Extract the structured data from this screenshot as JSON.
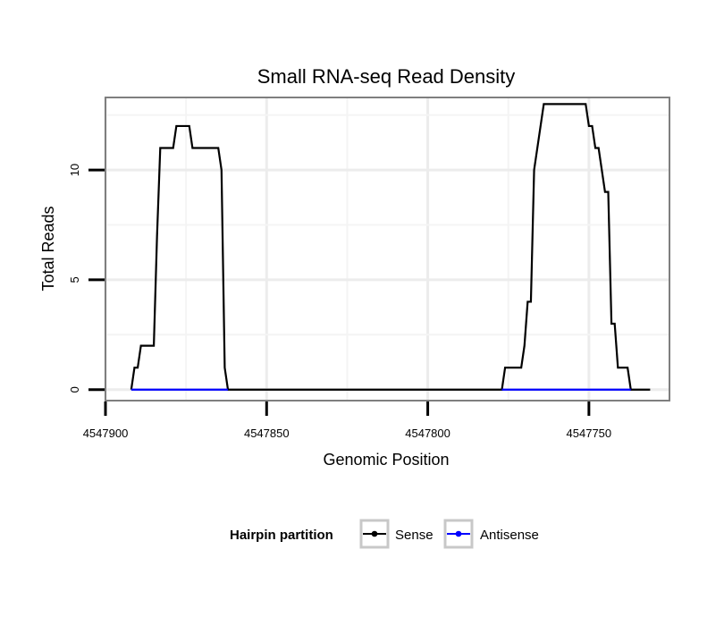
{
  "chart_data": {
    "type": "line",
    "title": "Small RNA-seq Read Density",
    "xlabel": "Genomic Position",
    "ylabel": "Total Reads",
    "xlim": [
      4547900,
      4547725
    ],
    "x_reversed": true,
    "ylim": [
      -0.5,
      13.3
    ],
    "xticks": [
      4547900,
      4547850,
      4547800,
      4547750
    ],
    "xtick_labels": [
      "4547900",
      "4547850",
      "4547800",
      "4547750"
    ],
    "yticks": [
      0,
      5,
      10
    ],
    "ytick_labels": [
      "0",
      "5",
      "10"
    ],
    "grid": true,
    "legend": {
      "title": "Hairpin partition",
      "position": "bottom",
      "entries": [
        {
          "name": "Sense",
          "color": "#000000"
        },
        {
          "name": "Antisense",
          "color": "#0000ff"
        }
      ]
    },
    "series": [
      {
        "name": "Sense",
        "color": "#000000",
        "points": [
          [
            4547892,
            0
          ],
          [
            4547891,
            1
          ],
          [
            4547890,
            1
          ],
          [
            4547889,
            2
          ],
          [
            4547888,
            2
          ],
          [
            4547887,
            2
          ],
          [
            4547886,
            2
          ],
          [
            4547885,
            2
          ],
          [
            4547884,
            7
          ],
          [
            4547883,
            11
          ],
          [
            4547882,
            11
          ],
          [
            4547881,
            11
          ],
          [
            4547880,
            11
          ],
          [
            4547879,
            11
          ],
          [
            4547878,
            12
          ],
          [
            4547877,
            12
          ],
          [
            4547876,
            12
          ],
          [
            4547875,
            12
          ],
          [
            4547874,
            12
          ],
          [
            4547873,
            11
          ],
          [
            4547872,
            11
          ],
          [
            4547871,
            11
          ],
          [
            4547870,
            11
          ],
          [
            4547869,
            11
          ],
          [
            4547868,
            11
          ],
          [
            4547867,
            11
          ],
          [
            4547866,
            11
          ],
          [
            4547865,
            11
          ],
          [
            4547864,
            10
          ],
          [
            4547863,
            1
          ],
          [
            4547862,
            0
          ],
          [
            4547777,
            0
          ],
          [
            4547776,
            1
          ],
          [
            4547775,
            1
          ],
          [
            4547774,
            1
          ],
          [
            4547773,
            1
          ],
          [
            4547772,
            1
          ],
          [
            4547771,
            1
          ],
          [
            4547770,
            2
          ],
          [
            4547769,
            4
          ],
          [
            4547768,
            4
          ],
          [
            4547767,
            10
          ],
          [
            4547766,
            11
          ],
          [
            4547765,
            12
          ],
          [
            4547764,
            13
          ],
          [
            4547763,
            13
          ],
          [
            4547762,
            13
          ],
          [
            4547761,
            13
          ],
          [
            4547760,
            13
          ],
          [
            4547759,
            13
          ],
          [
            4547758,
            13
          ],
          [
            4547757,
            13
          ],
          [
            4547756,
            13
          ],
          [
            4547755,
            13
          ],
          [
            4547754,
            13
          ],
          [
            4547753,
            13
          ],
          [
            4547752,
            13
          ],
          [
            4547751,
            13
          ],
          [
            4547750,
            12
          ],
          [
            4547749,
            12
          ],
          [
            4547748,
            11
          ],
          [
            4547747,
            11
          ],
          [
            4547746,
            10
          ],
          [
            4547745,
            9
          ],
          [
            4547744,
            9
          ],
          [
            4547743,
            3
          ],
          [
            4547742,
            3
          ],
          [
            4547741,
            1
          ],
          [
            4547740,
            1
          ],
          [
            4547739,
            1
          ],
          [
            4547738,
            1
          ],
          [
            4547737,
            0
          ],
          [
            4547731,
            0
          ]
        ]
      },
      {
        "name": "Antisense",
        "color": "#0000ff",
        "points": [
          [
            4547892,
            0
          ],
          [
            4547862,
            0
          ],
          [
            4547862,
            null
          ],
          [
            4547777,
            null
          ],
          [
            4547777,
            0
          ],
          [
            4547737,
            0
          ]
        ]
      }
    ]
  }
}
